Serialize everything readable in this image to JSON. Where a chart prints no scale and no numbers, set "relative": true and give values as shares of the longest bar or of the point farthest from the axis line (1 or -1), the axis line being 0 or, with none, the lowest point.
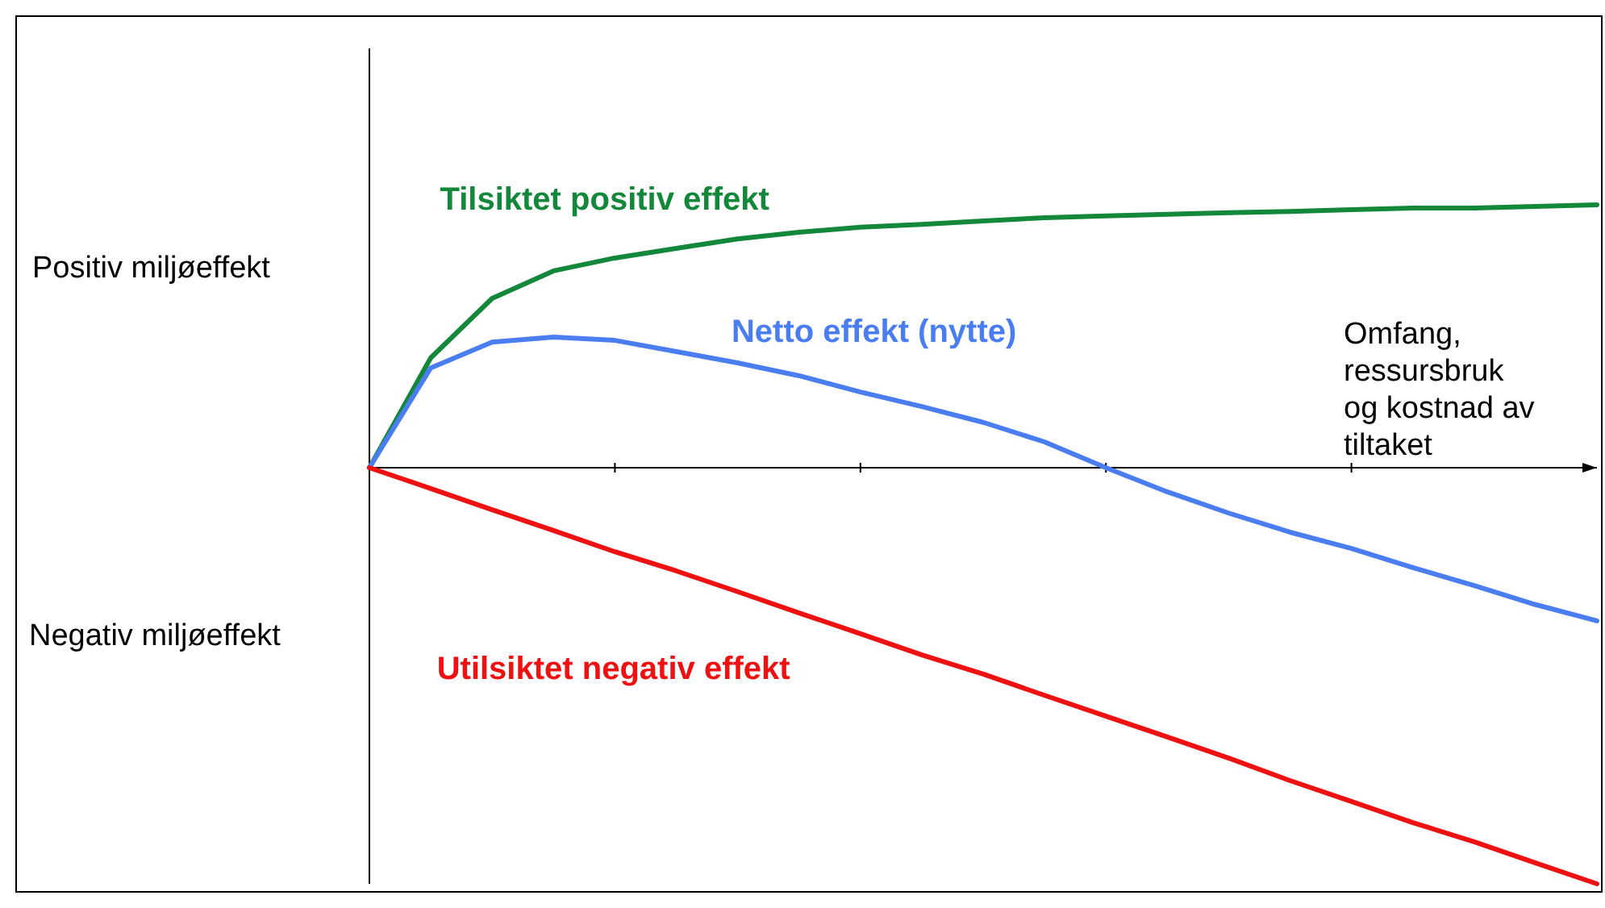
{
  "chart_data": {
    "type": "line",
    "relative": true,
    "line_style": "solid",
    "xlabel": "Omfang, ressursbruk og kostnad av tiltaket",
    "annotations": [
      "Positiv miljøeffekt",
      "Negativ miljøeffekt"
    ],
    "categories": [
      null,
      null,
      null,
      null,
      null,
      null,
      null,
      null,
      null,
      null,
      null,
      null,
      null,
      null,
      null,
      null,
      null,
      null,
      null,
      null,
      null
    ],
    "series": [
      {
        "name": "Tilsiktet positiv effekt",
        "color": "#13873a",
        "values": [
          0,
          0.264,
          0.407,
          0.473,
          0.504,
          0.527,
          0.55,
          0.566,
          0.578,
          0.585,
          0.593,
          0.601,
          0.605,
          0.609,
          0.613,
          0.616,
          0.62,
          0.624,
          0.624,
          0.628,
          0.632
        ]
      },
      {
        "name": "Netto effekt (nytte)",
        "color": "#4a7ef0",
        "values": [
          0,
          0.24,
          0.302,
          0.314,
          0.306,
          0.279,
          0.252,
          0.221,
          0.182,
          0.147,
          0.109,
          0.062,
          0,
          -0.058,
          -0.109,
          -0.155,
          -0.194,
          -0.24,
          -0.283,
          -0.329,
          -0.368
        ]
      },
      {
        "name": "Utilsiktet negativ effekt",
        "color": "#ee1111",
        "values": [
          0,
          -0.05,
          -0.101,
          -0.151,
          -0.202,
          -0.248,
          -0.298,
          -0.349,
          -0.399,
          -0.45,
          -0.496,
          -0.547,
          -0.597,
          -0.647,
          -0.698,
          -0.752,
          -0.802,
          -0.853,
          -0.899,
          -0.95,
          -1
        ]
      }
    ]
  }
}
